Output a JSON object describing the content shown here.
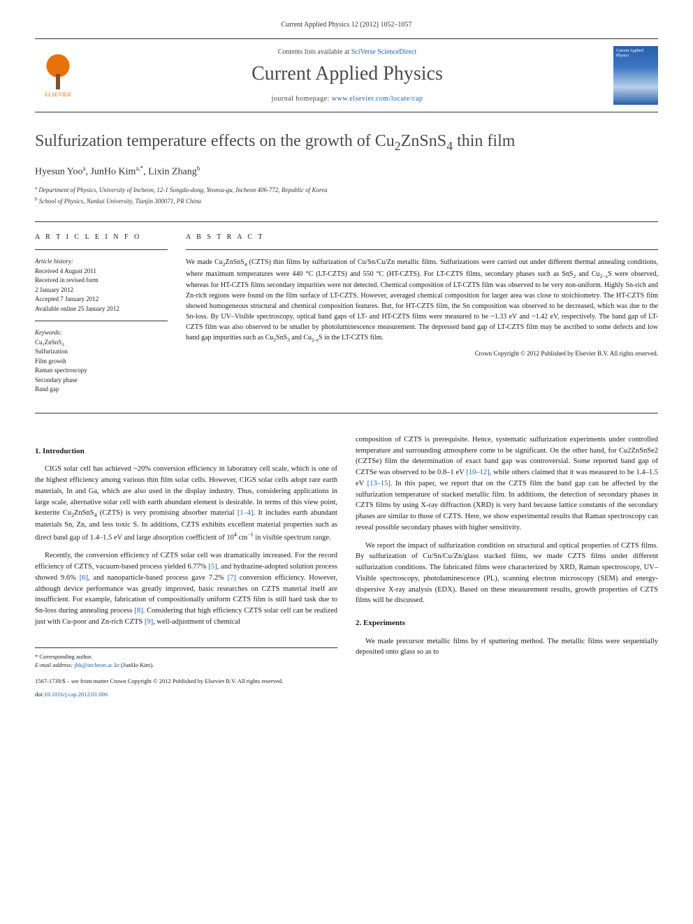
{
  "journal_ref": "Current Applied Physics 12 (2012) 1052–1057",
  "header": {
    "contents_prefix": "Contents lists available at ",
    "contents_link": "SciVerse ScienceDirect",
    "journal_title": "Current Applied Physics",
    "homepage_prefix": "journal homepage: ",
    "homepage_url": "www.elsevier.com/locate/cap",
    "publisher": "ELSEVIER",
    "cover_text": "Current Applied Physics"
  },
  "article": {
    "title_html": "Sulfurization temperature effects on the growth of Cu<span class='sub'>2</span>ZnSnS<span class='sub'>4</span> thin film",
    "authors_html": "Hyesun Yoo<span class='sup'>a</span>, JunHo Kim<span class='sup'>a,*</span>, Lixin Zhang<span class='sup'>b</span>",
    "affiliations": [
      {
        "sup": "a",
        "text": "Department of Physics, University of Incheon, 12-1 Songdo-dong, Yeonsu-gu, Incheon 406-772, Republic of Korea"
      },
      {
        "sup": "b",
        "text": "School of Physics, Nankai University, Tianjin 300071, PR China"
      }
    ]
  },
  "info": {
    "heading": "A R T I C L E   I N F O",
    "history_label": "Article history:",
    "history": [
      "Received 4 August 2011",
      "Received in revised form",
      "2 January 2012",
      "Accepted 7 January 2012",
      "Available online 25 January 2012"
    ],
    "keywords_label": "Keywords:",
    "keywords": [
      "Cu₂ZnSnS₄",
      "Sulfurization",
      "Film growth",
      "Raman spectroscopy",
      "Secondary phase",
      "Band gap"
    ]
  },
  "abstract": {
    "heading": "A B S T R A C T",
    "text_html": "We made Cu<span class='sub'>2</span>ZnSnS<span class='sub'>4</span> (CZTS) thin films by sulfurization of Cu/Sn/Cu/Zn metallic films. Sulfurizations were carried out under different thermal annealing conditions, where maximum temperatures were 440 °C (LT-CZTS) and 550 °C (HT-CZTS). For LT-CZTS films, secondary phases such as SnS<span class='sub'>2</span> and Cu<span class='sub'>2−x</span>S were observed, whereas for HT-CZTS films secondary impurities were not detected. Chemical composition of LT-CZTS film was observed to be very non-uniform. Highly Sn-rich and Zn-rich regions were found on the film surface of LT-CZTS. However, averaged chemical composition for larger area was close to stoichiometry. The HT-CZTS film showed homogeneous structural and chemical composition features. But, for HT-CZTS film, the Sn composition was observed to be decreased, which was due to the Sn-loss. By UV–Visible spectroscopy, optical band gaps of LT- and HT-CZTS films were measured to be ~1.33 eV and ~1.42 eV, respectively. The band gap of LT-CZTS film was also observed to be smaller by photoluminescence measurement. The depressed band gap of LT-CZTS film may be ascribed to some defects and low band gap impurities such as Cu<span class='sub'>2</span>SnS<span class='sub'>3</span> and Cu<span class='sub'>2-x</span>S in the LT-CZTS film.",
    "copyright": "Crown Copyright © 2012 Published by Elsevier B.V. All rights reserved."
  },
  "body": {
    "section1_heading": "1. Introduction",
    "para1_html": "CIGS solar cell has achieved ~20% conversion efficiency in laboratory cell scale, which is one of the highest efficiency among various thin film solar cells. However, CIGS solar cells adopt rare earth materials, In and Ga, which are also used in the display industry. Thus, considering applications in large scale, alternative solar cell with earth abundant element is desirable. In terms of this view point, kesterite Cu<span class='sub'>2</span>ZnSnS<span class='sub'>4</span> (CZTS) is very promising absorber material <span class='ref-link'>[1–4]</span>. It includes earth abundant materials Sn, Zn, and less toxic S. In additions, CZTS exhibits excellent material properties such as direct band gap of 1.4–1.5 eV and large absorption coefficient of 10<span class='supn'>4</span> cm<span class='supn'>−1</span> in visible spectrum range.",
    "para2_html": "Recently, the conversion efficiency of CZTS solar cell was dramatically increased. For the record efficiency of CZTS, vacuum-based process yielded 6.77% <span class='ref-link'>[5]</span>, and hydrazine-adopted solution process showed 9.6% <span class='ref-link'>[6]</span>, and nanoparticle-based process gave 7.2% <span class='ref-link'>[7]</span> conversion efficiency. However, although device performance was greatly improved, basic researches on CZTS material itself are insufficient. For example, fabrication of compositionally uniform CZTS film is still hard task due to Sn-loss during annealing process <span class='ref-link'>[8]</span>. Considering that high efficiency CZTS solar cell can be realized just with Cu-poor and Zn-rich CZTS <span class='ref-link'>[9]</span>, well-adjustment of chemical",
    "para3_html": "composition of CZTS is prerequisite. Hence, systematic sulfurization experiments under controlled temperature and surrounding atmosphere come to be significant. On the other hand, for Cu2ZnSnSe2 (CZTSe) film the determination of exact band gap was controversial. Some reported band gap of CZTSe was observed to be 0.8–1 eV <span class='ref-link'>[10–12]</span>, while others claimed that it was measured to be 1.4–1.5 eV <span class='ref-link'>[13–15]</span>. In this paper, we report that on the CZTS film the band gap can be affected by the sulfurization temperature of stacked metallic film. In additions, the detection of secondary phases in CZTS films by using X-ray diffraction (XRD) is very hard because lattice constants of the secondary phases are similar to those of CZTS. Here, we show experimental results that Raman spectroscopy can reveal possible secondary phases with higher sensitivity.",
    "para4_html": "We report the impact of sulfurization condition on structural and optical properties of CZTS films. By sulfurization of Cu/Sn/Cu/Zn/glass stacked films, we made CZTS films under different sulfurization conditions. The fabricated films were characterized by XRD, Raman spectroscopy, UV–Visible spectroscopy, photoluminescence (PL), scanning electron microscopy (SEM) and energy-dispersive X-ray analysis (EDX). Based on these measurement results, growth properties of CZTS films will be discussed.",
    "section2_heading": "2. Experiments",
    "para5_html": "We made precursor metallic films by rf sputtering method. The metallic films were sequentially deposited onto glass so as to"
  },
  "footer": {
    "corr_label": "* Corresponding author.",
    "email_label": "E-mail address: ",
    "email": "jhk@incheon.ac.kr",
    "email_name": " (JunHo Kim).",
    "issn_line": "1567-1739/$ – see front matter Crown Copyright © 2012 Published by Elsevier B.V. All rights reserved.",
    "doi_label": "doi:",
    "doi": "10.1016/j.cap.2012.01.006"
  },
  "colors": {
    "text": "#1a1a1a",
    "link": "#1a5fb4",
    "heading_grey": "#4a4a4a",
    "elsevier_orange": "#e8710a",
    "cover_blue": "#2a5fa8"
  },
  "typography": {
    "body_font": "Georgia, 'Times New Roman', serif",
    "title_size_pt": 24,
    "journal_title_size_pt": 28,
    "body_size_pt": 10.5,
    "abstract_size_pt": 10,
    "small_size_pt": 9
  }
}
